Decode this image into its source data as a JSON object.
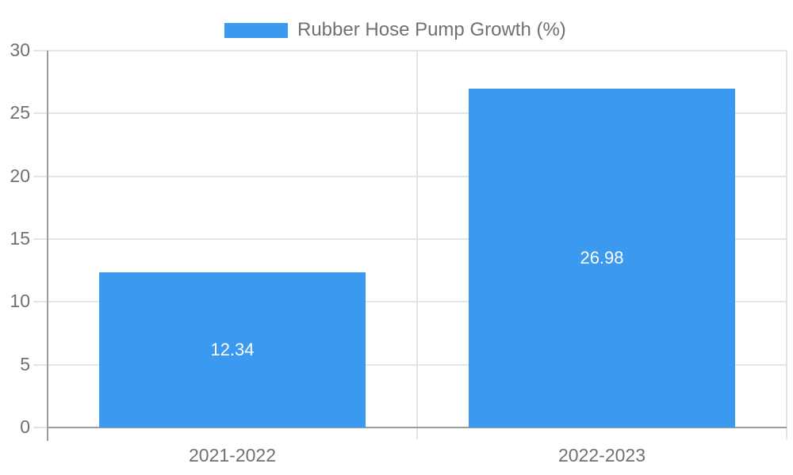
{
  "legend": {
    "label": "Rubber Hose Pump Growth (%)"
  },
  "colors": {
    "bar": "#3b99f0",
    "grid": "#e4e4e4",
    "axis": "#9c9c9c",
    "tick_text": "#707070",
    "value_text": "#ffffff",
    "background": "#ffffff"
  },
  "chart_data": {
    "type": "bar",
    "categories": [
      "2021-2022",
      "2022-2023"
    ],
    "values": [
      12.34,
      26.98
    ],
    "value_labels": [
      "12.34",
      "26.98"
    ],
    "series_name": "Rubber Hose Pump Growth (%)",
    "title": "",
    "xlabel": "",
    "ylabel": "",
    "ylim": [
      0,
      30
    ],
    "yticks": [
      0,
      5,
      10,
      15,
      20,
      25,
      30
    ],
    "grid": true,
    "legend_position": "top"
  }
}
